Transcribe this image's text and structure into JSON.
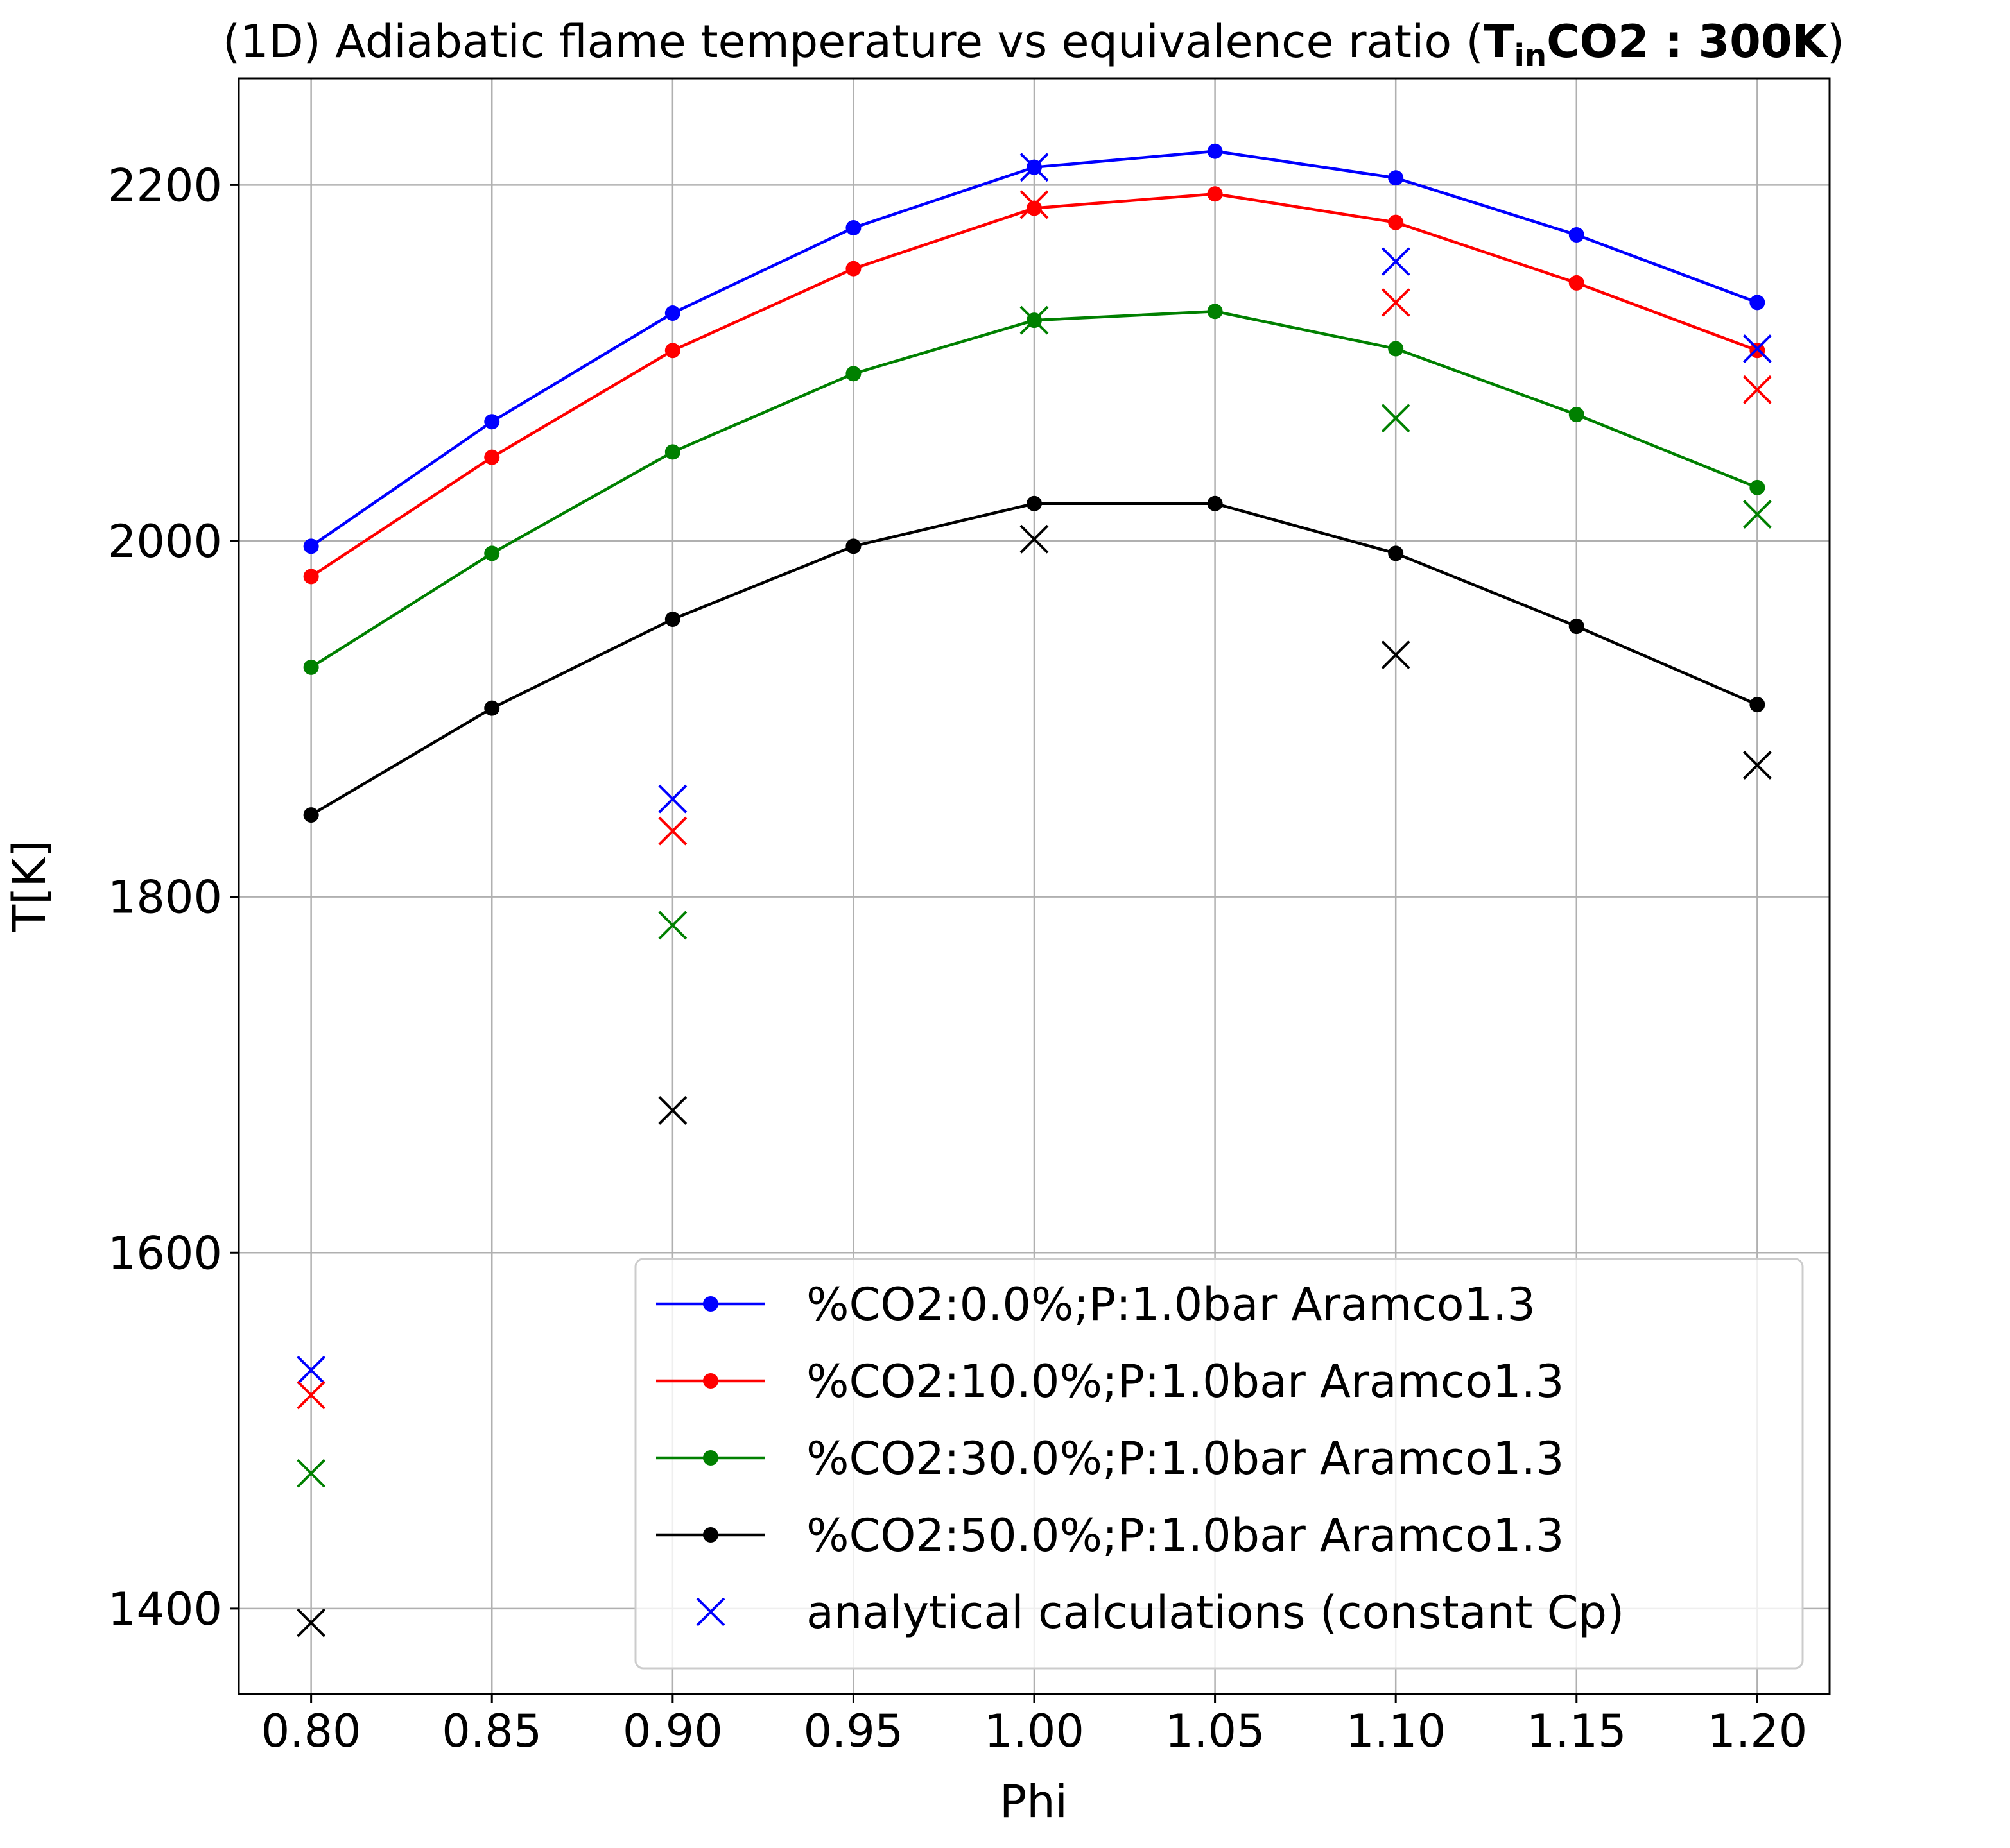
{
  "chart_data": {
    "type": "line",
    "title": {
      "prefix": "(1D) Adiabatic flame temperature vs equivalence ratio (",
      "bold_main": "T",
      "bold_sub": "in",
      "bold_rest": "CO2 : 300K",
      "suffix": ")"
    },
    "xlabel": "Phi",
    "ylabel": "T[K]",
    "xlim": [
      0.78,
      1.22
    ],
    "ylim": [
      1352,
      2260
    ],
    "grid": true,
    "legend_position": "lower right",
    "xticks": [
      0.8,
      0.85,
      0.9,
      0.95,
      1.0,
      1.05,
      1.1,
      1.15,
      1.2
    ],
    "xtick_labels": [
      "0.80",
      "0.85",
      "0.90",
      "0.95",
      "1.00",
      "1.05",
      "1.10",
      "1.15",
      "1.20"
    ],
    "yticks": [
      1400,
      1600,
      1800,
      2000,
      2200
    ],
    "ytick_labels": [
      "1400",
      "1600",
      "1800",
      "2000",
      "2200"
    ],
    "x": [
      0.8,
      0.85,
      0.9,
      0.95,
      1.0,
      1.05,
      1.1,
      1.15,
      1.2
    ],
    "series": [
      {
        "name": "%CO2:0.0%;P:1.0bar Aramco1.3",
        "color": "#0000ff",
        "marker": "circle",
        "values": [
          1997,
          2067,
          2128,
          2176,
          2210,
          2219,
          2204,
          2172,
          2134
        ]
      },
      {
        "name": "%CO2:10.0%;P:1.0bar Aramco1.3",
        "color": "#ff0000",
        "marker": "circle",
        "values": [
          1980,
          2047,
          2107,
          2153,
          2187,
          2195,
          2179,
          2145,
          2107
        ]
      },
      {
        "name": "%CO2:30.0%;P:1.0bar Aramco1.3",
        "color": "#008000",
        "marker": "circle",
        "values": [
          1929,
          1993,
          2050,
          2094,
          2124,
          2129,
          2108,
          2071,
          2030
        ]
      },
      {
        "name": "%CO2:50.0%;P:1.0bar Aramco1.3",
        "color": "#000000",
        "marker": "circle",
        "values": [
          1846,
          1906,
          1956,
          1997,
          2021,
          2021,
          1993,
          1952,
          1908
        ]
      }
    ],
    "analytical": {
      "name": "analytical calculations (constant Cp)",
      "marker": "x",
      "legend_color": "#0000ff",
      "x": [
        0.8,
        0.9,
        1.0,
        1.1,
        1.2
      ],
      "groups": [
        {
          "color": "#0000ff",
          "values": [
            1534,
            1855,
            2210,
            2157,
            2108
          ]
        },
        {
          "color": "#ff0000",
          "values": [
            1520,
            1837,
            2189,
            2134,
            2085
          ]
        },
        {
          "color": "#008000",
          "values": [
            1476,
            1784,
            2124,
            2069,
            2015
          ]
        },
        {
          "color": "#000000",
          "values": [
            1392,
            1680,
            2001,
            1936,
            1874
          ]
        }
      ]
    }
  }
}
